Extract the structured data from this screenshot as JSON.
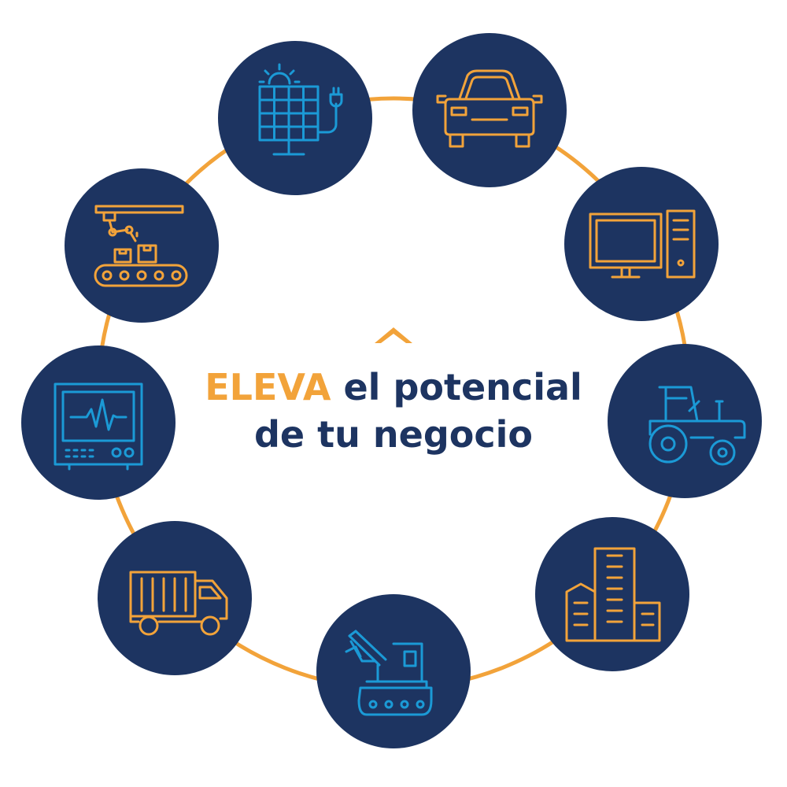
{
  "headline": {
    "accent": "ELEVA",
    "line1_rest": " el potencial",
    "line2": "de tu negocio"
  },
  "colors": {
    "accent": "#f2a33a",
    "navy": "#1d3461",
    "blue_icon": "#1b9ad6",
    "ring": "#f2a33a",
    "background": "#ffffff"
  },
  "icons": [
    {
      "name": "solar-panel-icon",
      "color": "blue"
    },
    {
      "name": "car-icon",
      "color": "orange"
    },
    {
      "name": "desktop-computer-icon",
      "color": "orange"
    },
    {
      "name": "tractor-icon",
      "color": "blue"
    },
    {
      "name": "buildings-icon",
      "color": "orange"
    },
    {
      "name": "excavator-icon",
      "color": "blue"
    },
    {
      "name": "truck-icon",
      "color": "orange"
    },
    {
      "name": "medical-monitor-icon",
      "color": "blue"
    },
    {
      "name": "factory-conveyor-icon",
      "color": "orange"
    }
  ]
}
